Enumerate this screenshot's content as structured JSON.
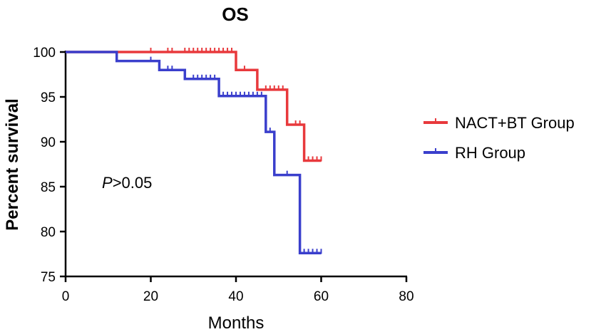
{
  "chart_data": {
    "type": "line",
    "title": "OS",
    "xlabel": "Months",
    "ylabel": "Percent survival",
    "xlim": [
      0,
      80
    ],
    "ylim": [
      75,
      100
    ],
    "x_ticks": [
      "0",
      "20",
      "40",
      "60",
      "80"
    ],
    "y_ticks": [
      "75",
      "80",
      "85",
      "90",
      "95",
      "100"
    ],
    "grid": false,
    "legend_position": "right",
    "annotation": {
      "italic": "P",
      "rest": ">0.05"
    },
    "series": [
      {
        "name": "NACT+BT Group",
        "color": "#e8393c",
        "steps": [
          [
            0,
            100
          ],
          [
            40,
            98
          ],
          [
            45,
            95.8
          ],
          [
            52,
            91.9
          ],
          [
            56,
            87.9
          ],
          [
            60,
            87.9
          ]
        ],
        "censored": [
          [
            20,
            100
          ],
          [
            24,
            100
          ],
          [
            25,
            100
          ],
          [
            28,
            100
          ],
          [
            29,
            100
          ],
          [
            30,
            100
          ],
          [
            31,
            100
          ],
          [
            32,
            100
          ],
          [
            33,
            100
          ],
          [
            34,
            100
          ],
          [
            35,
            100
          ],
          [
            36,
            100
          ],
          [
            37,
            100
          ],
          [
            38,
            100
          ],
          [
            39,
            100
          ],
          [
            42,
            98
          ],
          [
            47,
            95.8
          ],
          [
            48,
            95.8
          ],
          [
            49,
            95.8
          ],
          [
            50,
            95.8
          ],
          [
            51,
            95.8
          ],
          [
            54,
            91.9
          ],
          [
            55,
            91.9
          ],
          [
            57,
            87.9
          ],
          [
            58,
            87.9
          ],
          [
            59,
            87.9
          ],
          [
            60,
            87.9
          ]
        ]
      },
      {
        "name": "RH Group",
        "color": "#3a3fcc",
        "steps": [
          [
            0,
            100
          ],
          [
            12,
            99
          ],
          [
            22,
            98
          ],
          [
            28,
            97
          ],
          [
            36,
            95.1
          ],
          [
            47,
            91.1
          ],
          [
            49,
            86.3
          ],
          [
            55,
            77.6
          ],
          [
            60,
            77.6
          ]
        ],
        "censored": [
          [
            20,
            99
          ],
          [
            24,
            98
          ],
          [
            25,
            98
          ],
          [
            30,
            97
          ],
          [
            31,
            97
          ],
          [
            32,
            97
          ],
          [
            33,
            97
          ],
          [
            34,
            97
          ],
          [
            35,
            97
          ],
          [
            37,
            95.1
          ],
          [
            38,
            95.1
          ],
          [
            39,
            95.1
          ],
          [
            40,
            95.1
          ],
          [
            41,
            95.1
          ],
          [
            42,
            95.1
          ],
          [
            43,
            95.1
          ],
          [
            44,
            95.1
          ],
          [
            45,
            95.1
          ],
          [
            46,
            95.1
          ],
          [
            48,
            91.1
          ],
          [
            52,
            86.3
          ],
          [
            56,
            77.6
          ],
          [
            57,
            77.6
          ],
          [
            58,
            77.6
          ],
          [
            59,
            77.6
          ],
          [
            60,
            77.6
          ]
        ]
      }
    ]
  }
}
